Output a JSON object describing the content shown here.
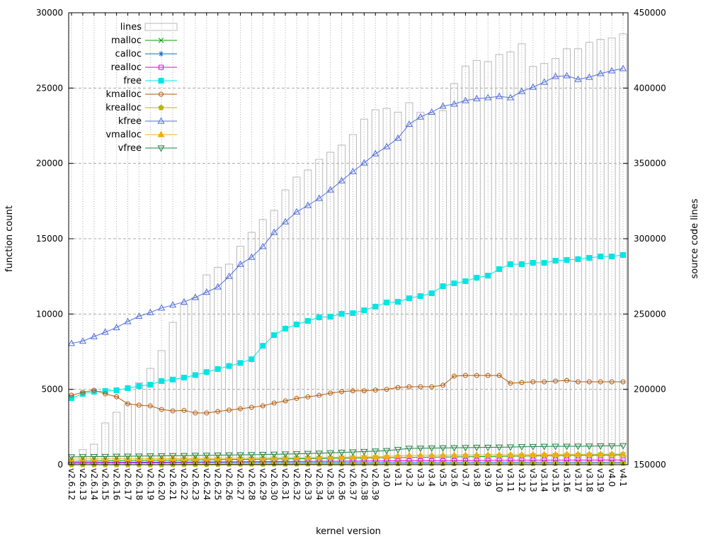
{
  "chart_data": {
    "type": "mixed",
    "title": "",
    "xlabel": "kernel version",
    "ylabel_left": "function count",
    "ylabel_right": "source code lines",
    "ylim_left": [
      0,
      30000
    ],
    "ylim_right": [
      150000,
      450000
    ],
    "yticks_left": [
      0,
      5000,
      10000,
      15000,
      20000,
      25000,
      30000
    ],
    "yticks_right": [
      150000,
      200000,
      250000,
      300000,
      350000,
      400000,
      450000
    ],
    "grid": "dotted",
    "grid_color": "#a8a8a8",
    "legend_position": "top-left",
    "x_categories": [
      "v2.6.12",
      "v2.6.13",
      "v2.6.14",
      "v2.6.15",
      "v2.6.16",
      "v2.6.17",
      "v2.6.18",
      "v2.6.19",
      "v2.6.20",
      "v2.6.21",
      "v2.6.22",
      "v2.6.23",
      "v2.6.24",
      "v2.6.25",
      "v2.6.26",
      "v2.6.27",
      "v2.6.28",
      "v2.6.29",
      "v2.6.30",
      "v2.6.31",
      "v2.6.32",
      "v2.6.33",
      "v2.6.34",
      "v2.6.35",
      "v2.6.36",
      "v2.6.37",
      "v2.6.38",
      "v2.6.39",
      "v3.0",
      "v3.1",
      "v3.2",
      "v3.3",
      "v3.4",
      "v3.5",
      "v3.6",
      "v3.7",
      "v3.8",
      "v3.9",
      "v3.10",
      "v3.11",
      "v3.12",
      "v3.13",
      "v3.14",
      "v3.15",
      "v3.16",
      "v3.17",
      "v3.18",
      "v3.19",
      "v4.0",
      "v4.1"
    ],
    "series": [
      {
        "name": "lines",
        "type": "bar",
        "axis": "right",
        "color": "#b8b8b8",
        "marker": "box",
        "values": [
          151500,
          160000,
          163600,
          177700,
          184800,
          190400,
          204500,
          213900,
          225700,
          244500,
          256300,
          261000,
          276000,
          281000,
          283100,
          295000,
          304200,
          312700,
          318800,
          332400,
          340900,
          345600,
          352700,
          357400,
          362100,
          369100,
          379400,
          385600,
          386500,
          384000,
          390300,
          384000,
          383500,
          385000,
          403000,
          414600,
          418300,
          417600,
          422300,
          424100,
          429400,
          414400,
          416300,
          419600,
          426100,
          426100,
          430400,
          432300,
          433200,
          436000
        ]
      },
      {
        "name": "malloc",
        "type": "line",
        "axis": "left",
        "color": "#00a000",
        "marker": "x",
        "values": [
          230,
          238,
          246,
          254,
          262,
          270,
          278,
          286,
          294,
          302,
          310,
          318,
          326,
          334,
          342,
          350,
          358,
          366,
          374,
          382,
          391,
          400,
          409,
          418,
          427,
          436,
          445,
          454,
          463,
          472,
          481,
          490,
          499,
          508,
          517,
          526,
          535,
          544,
          553,
          562,
          571,
          580,
          589,
          598,
          607,
          616,
          625,
          634,
          643,
          652
        ]
      },
      {
        "name": "calloc",
        "type": "line",
        "axis": "left",
        "color": "#0a6fd0",
        "marker": "star",
        "values": [
          100,
          103,
          106,
          109,
          112,
          114,
          116,
          118,
          120,
          122,
          124,
          126,
          128,
          130,
          131,
          132,
          133,
          134,
          135,
          136,
          137,
          138,
          139,
          140,
          141,
          142,
          143,
          144,
          145,
          146,
          147,
          147,
          148,
          148,
          149,
          149,
          150,
          150,
          150,
          150,
          151,
          151,
          152,
          152,
          153,
          153,
          154,
          154,
          155,
          155
        ]
      },
      {
        "name": "realloc",
        "type": "line",
        "axis": "left",
        "color": "#e000e0",
        "marker": "osquare",
        "values": [
          140,
          144,
          148,
          152,
          156,
          160,
          164,
          168,
          172,
          176,
          180,
          184,
          188,
          192,
          196,
          200,
          204,
          208,
          212,
          216,
          220,
          224,
          228,
          232,
          236,
          240,
          244,
          248,
          252,
          256,
          260,
          263,
          266,
          269,
          272,
          275,
          278,
          281,
          284,
          287,
          290,
          292,
          294,
          296,
          298,
          300,
          302,
          304,
          306,
          308
        ]
      },
      {
        "name": "free",
        "type": "line",
        "axis": "left",
        "color": "#00e5e5",
        "marker": "fsquare",
        "values": [
          4420,
          4700,
          4840,
          4890,
          4940,
          5080,
          5220,
          5310,
          5550,
          5650,
          5780,
          5950,
          6150,
          6350,
          6550,
          6750,
          7000,
          7890,
          8600,
          9030,
          9310,
          9540,
          9780,
          9820,
          10010,
          10060,
          10250,
          10490,
          10770,
          10810,
          11050,
          11190,
          11380,
          11850,
          12040,
          12180,
          12410,
          12550,
          12980,
          13310,
          13310,
          13400,
          13400,
          13540,
          13590,
          13640,
          13730,
          13820,
          13820,
          13920
        ]
      },
      {
        "name": "kmalloc",
        "type": "line",
        "axis": "left",
        "color": "#b05a0a",
        "marker": "ocircle",
        "values": [
          4610,
          4800,
          4940,
          4700,
          4510,
          4040,
          3950,
          3900,
          3670,
          3570,
          3600,
          3430,
          3430,
          3530,
          3620,
          3710,
          3810,
          3900,
          4090,
          4230,
          4400,
          4500,
          4600,
          4750,
          4850,
          4900,
          4900,
          4950,
          5000,
          5120,
          5170,
          5170,
          5170,
          5270,
          5880,
          5920,
          5920,
          5920,
          5920,
          5410,
          5450,
          5500,
          5500,
          5550,
          5590,
          5500,
          5500,
          5500,
          5500,
          5500
        ]
      },
      {
        "name": "krealloc",
        "type": "line",
        "axis": "left",
        "color": "#bdb500",
        "marker": "fpent",
        "values": [
          0,
          0,
          0,
          0,
          0,
          0,
          0,
          0,
          0,
          10,
          15,
          20,
          25,
          30,
          35,
          38,
          40,
          42,
          45,
          48,
          50,
          52,
          54,
          56,
          58,
          60,
          62,
          64,
          66,
          68,
          70,
          71,
          72,
          73,
          74,
          75,
          76,
          77,
          78,
          79,
          80,
          81,
          82,
          83,
          84,
          85,
          86,
          87,
          88,
          90
        ]
      },
      {
        "name": "kfree",
        "type": "line",
        "axis": "left",
        "color": "#4f6edb",
        "marker": "otriup",
        "values": [
          8050,
          8200,
          8500,
          8800,
          9100,
          9500,
          9850,
          10100,
          10400,
          10600,
          10800,
          11100,
          11450,
          11800,
          12500,
          13300,
          13770,
          14480,
          15420,
          16120,
          16780,
          17210,
          17680,
          18240,
          18850,
          19460,
          20030,
          20640,
          21110,
          21670,
          22600,
          23080,
          23400,
          23800,
          23940,
          24170,
          24300,
          24360,
          24450,
          24360,
          24780,
          25060,
          25390,
          25770,
          25820,
          25580,
          25720,
          25960,
          26150,
          26290
        ]
      },
      {
        "name": "vmalloc",
        "type": "line",
        "axis": "left",
        "color": "#efaf0f",
        "marker": "ftriup",
        "values": [
          375,
          378,
          381,
          384,
          387,
          390,
          393,
          396,
          399,
          402,
          405,
          410,
          415,
          420,
          425,
          430,
          435,
          440,
          448,
          456,
          464,
          472,
          480,
          490,
          500,
          510,
          520,
          535,
          550,
          580,
          610,
          615,
          620,
          625,
          630,
          635,
          640,
          645,
          650,
          655,
          665,
          670,
          675,
          680,
          685,
          690,
          695,
          698,
          701,
          705
        ]
      },
      {
        "name": "vfree",
        "type": "line",
        "axis": "left",
        "color": "#1f8040",
        "marker": "otridown",
        "values": [
          520,
          528,
          536,
          544,
          552,
          560,
          568,
          576,
          584,
          592,
          600,
          610,
          620,
          630,
          640,
          650,
          660,
          675,
          690,
          705,
          720,
          740,
          760,
          785,
          810,
          840,
          870,
          900,
          930,
          1000,
          1080,
          1090,
          1100,
          1110,
          1120,
          1130,
          1140,
          1150,
          1160,
          1170,
          1190,
          1200,
          1210,
          1215,
          1220,
          1225,
          1230,
          1240,
          1250,
          1260
        ]
      }
    ]
  }
}
